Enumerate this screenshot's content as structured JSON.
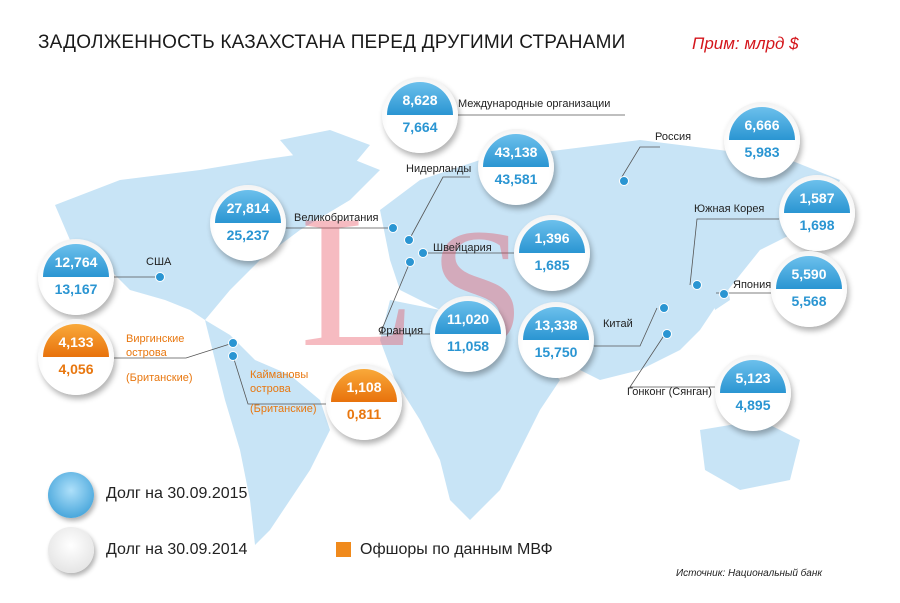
{
  "header": {
    "title": "ЗАДОЛЖЕННОСТЬ КАЗАХСТАНА ПЕРЕД ДРУГИМИ СТРАНАМИ",
    "note": "Прим: млрд $"
  },
  "countries": [
    {
      "label": "Международные организации",
      "debt_2015": "8,628",
      "debt_2014": "7,664",
      "offshore": false
    },
    {
      "label": "Россия",
      "debt_2015": "6,666",
      "debt_2014": "5,983",
      "offshore": false
    },
    {
      "label": "Нидерланды",
      "debt_2015": "43,138",
      "debt_2014": "43,581",
      "offshore": false
    },
    {
      "label": "Великобритания",
      "debt_2015": "27,814",
      "debt_2014": "25,237",
      "offshore": false
    },
    {
      "label": "Швейцария",
      "debt_2015": "1,396",
      "debt_2014": "1,685",
      "offshore": false
    },
    {
      "label": "США",
      "debt_2015": "12,764",
      "debt_2014": "13,167",
      "offshore": false
    },
    {
      "label": "Южная Корея",
      "debt_2015": "1,587",
      "debt_2014": "1,698",
      "offshore": false
    },
    {
      "label": "Япония",
      "debt_2015": "5,590",
      "debt_2014": "5,568",
      "offshore": false
    },
    {
      "label": "Франция",
      "debt_2015": "11,020",
      "debt_2014": "11,058",
      "offshore": false
    },
    {
      "label": "Китай",
      "debt_2015": "13,338",
      "debt_2014": "15,750",
      "offshore": false
    },
    {
      "label": "Виргинские острова",
      "label2": "(Британские)",
      "debt_2015": "4,133",
      "debt_2014": "4,056",
      "offshore": true
    },
    {
      "label": "Каймановы острова",
      "label2": "(Британские)",
      "debt_2015": "1,108",
      "debt_2014": "0,811",
      "offshore": true
    },
    {
      "label": "Гонконг (Сянган)",
      "debt_2015": "5,123",
      "debt_2014": "4,895",
      "offshore": false
    }
  ],
  "legend": {
    "debt_2015": "Долг на 30.09.2015",
    "debt_2014": "Долг на 30.09.2014",
    "offshore": "Офшоры по данным МВФ"
  },
  "source": "Источник: Национальный банк",
  "watermark": "LS",
  "colors": {
    "blue": "#2a95d2",
    "orange": "#e8770f",
    "map": "#c5e3f6",
    "title_note": "#d4161c"
  }
}
